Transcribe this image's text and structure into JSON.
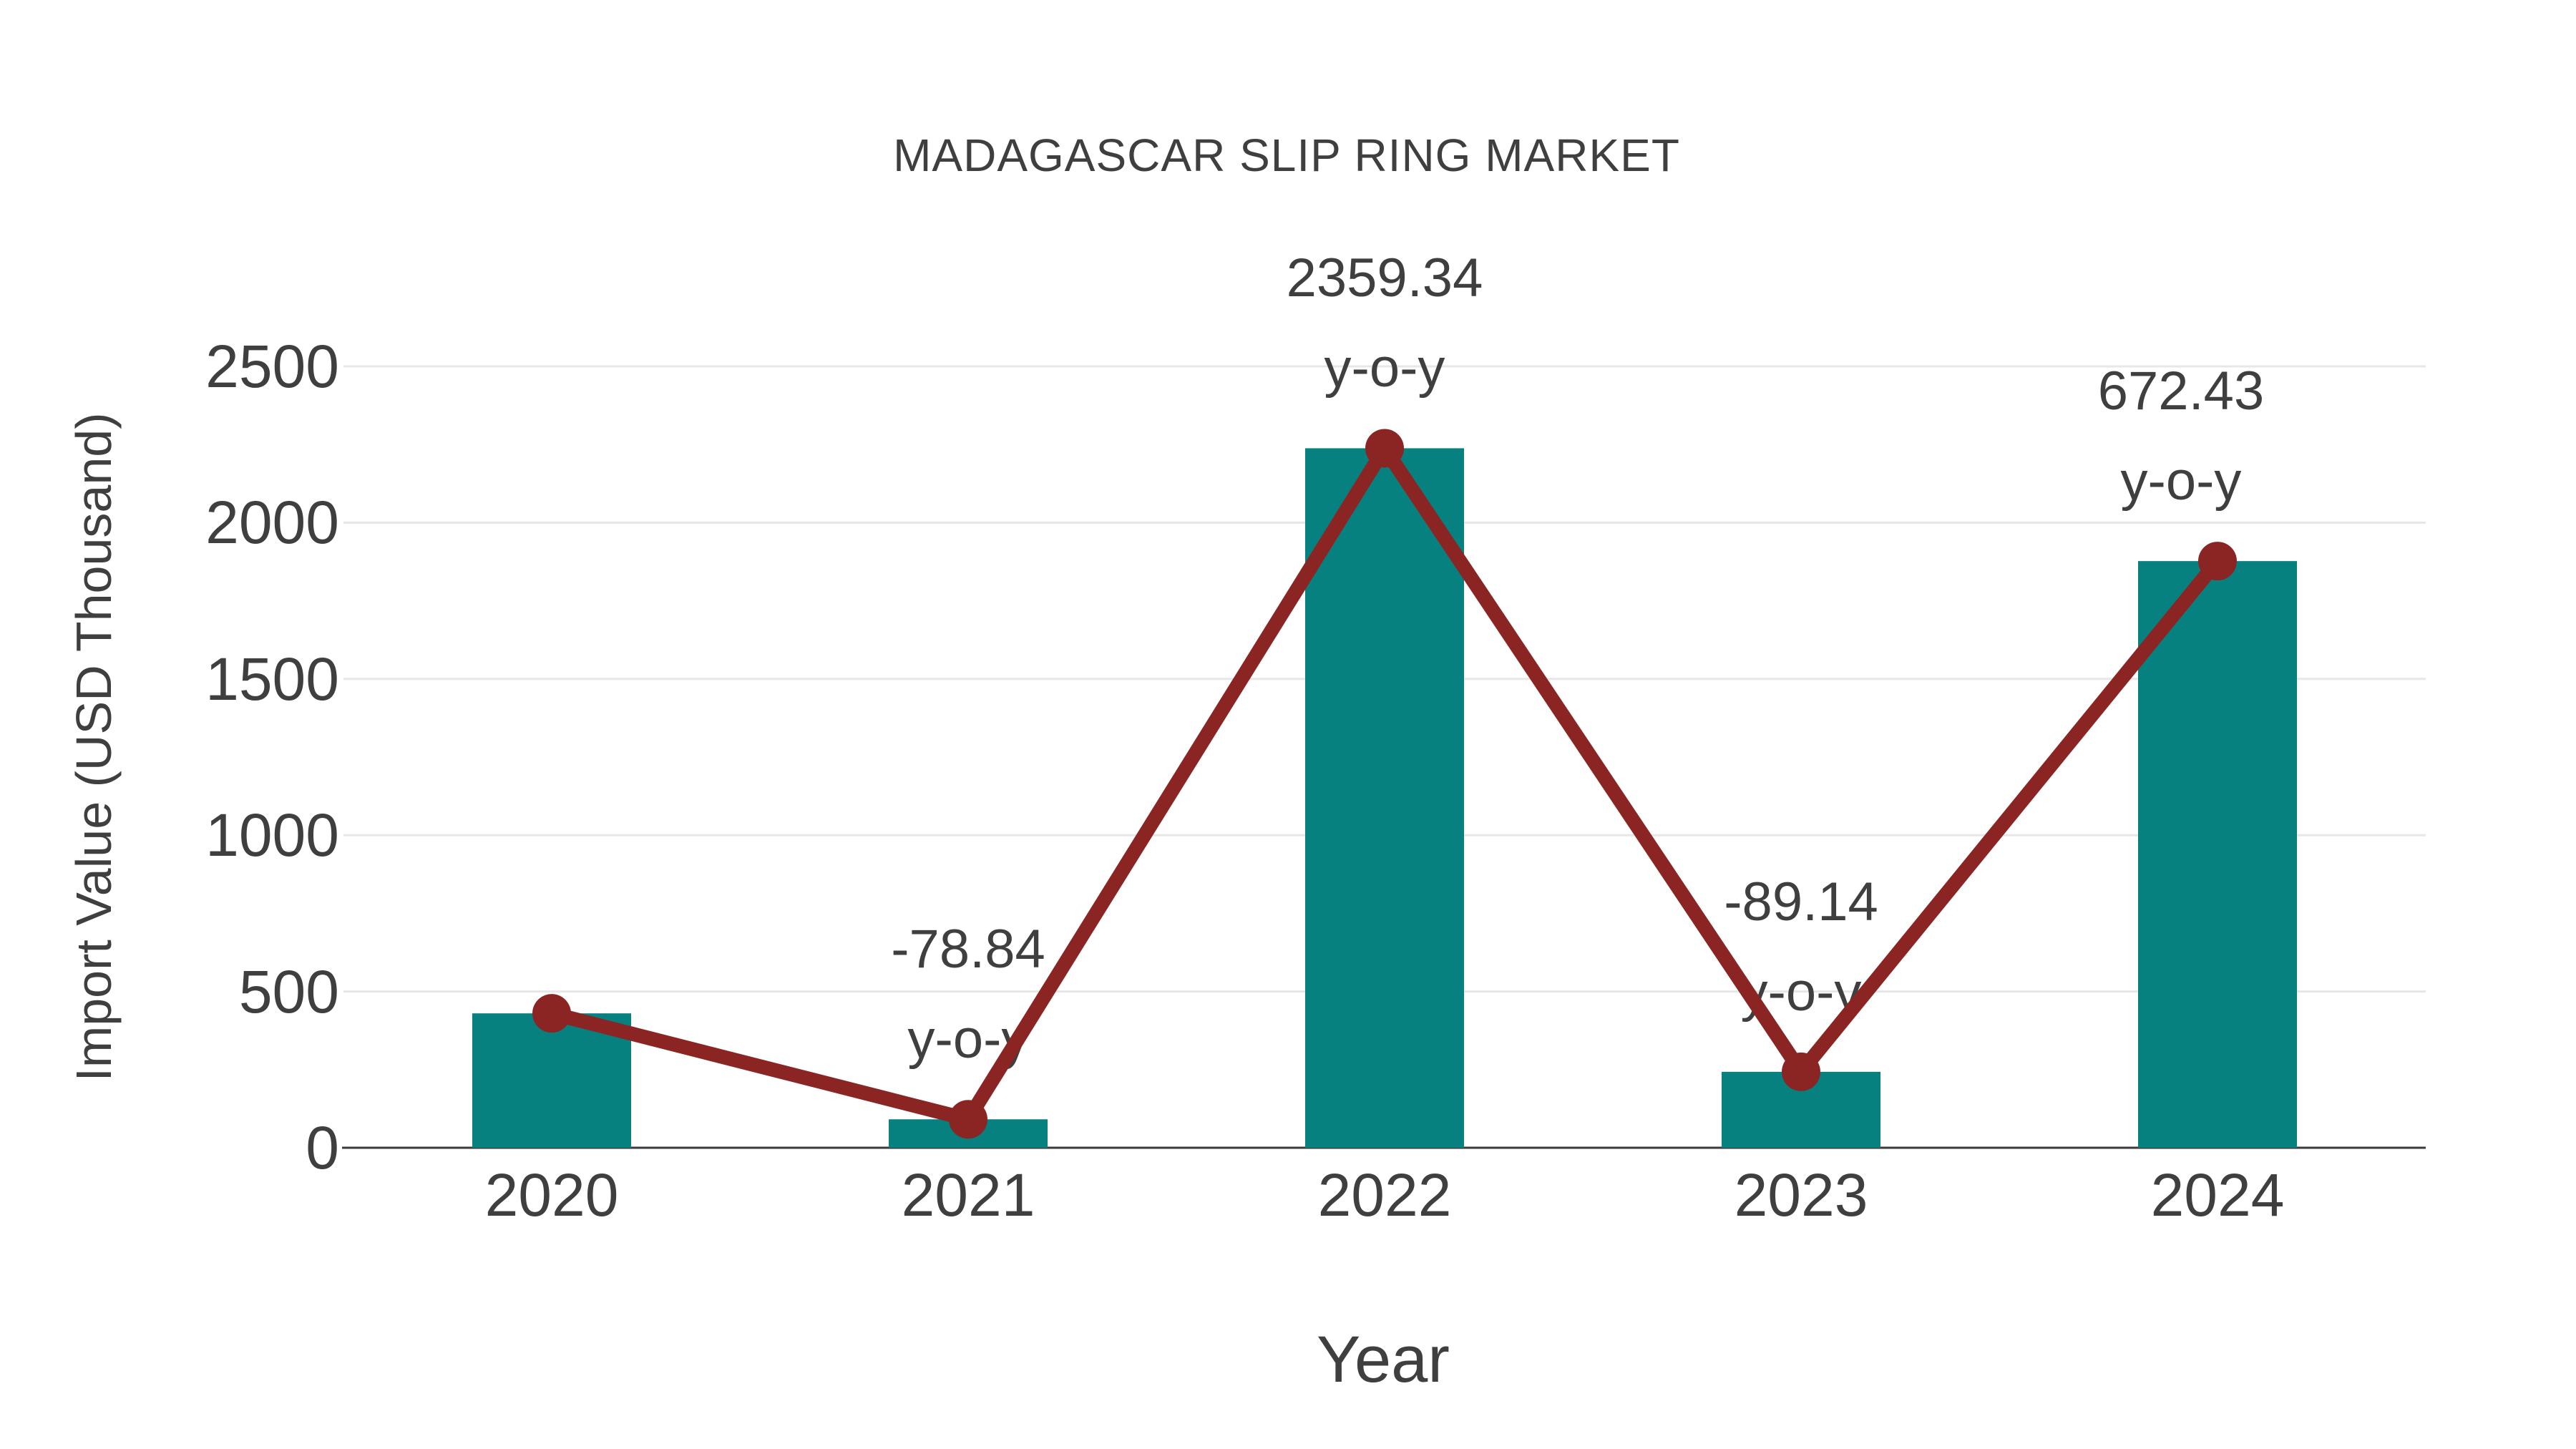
{
  "figure": {
    "background": "#ffffff"
  },
  "chart_data": {
    "type": "bar",
    "title": "MADAGASCAR SLIP RING MARKET",
    "xlabel": "Year",
    "ylabel": "Import Value (USD Thousand)",
    "categories": [
      "2020",
      "2021",
      "2022",
      "2023",
      "2024"
    ],
    "series": [
      {
        "name": "Import Value",
        "type": "bar",
        "color": "#078180",
        "values": [
          430,
          91,
          2238,
          243,
          1877
        ]
      },
      {
        "name": "Import Value trend markers",
        "type": "line",
        "color": "#8b2523",
        "values": [
          430,
          91,
          2238,
          243,
          1877
        ]
      }
    ],
    "yticks": [
      "0",
      "500",
      "1000",
      "1500",
      "2000",
      "2500"
    ],
    "ytick_values": [
      0,
      500,
      1000,
      1500,
      2000,
      2500
    ],
    "ylim": [
      0,
      2500
    ],
    "grid": "horizontal",
    "legend_position": "none",
    "annotations": [
      {
        "category": "2021",
        "lines": [
          "-78.84",
          "y-o-y"
        ]
      },
      {
        "category": "2022",
        "lines": [
          "2359.34",
          "y-o-y"
        ]
      },
      {
        "category": "2023",
        "lines": [
          "-89.14",
          "y-o-y"
        ]
      },
      {
        "category": "2024",
        "lines": [
          "672.43",
          "y-o-y"
        ]
      }
    ],
    "colors": {
      "bar": "#078180",
      "line": "#8b2523",
      "text": "#3f3f3f",
      "grid": "#e7e7e7",
      "axis_line": "#3a3a3a",
      "background": "#ffffff"
    }
  }
}
